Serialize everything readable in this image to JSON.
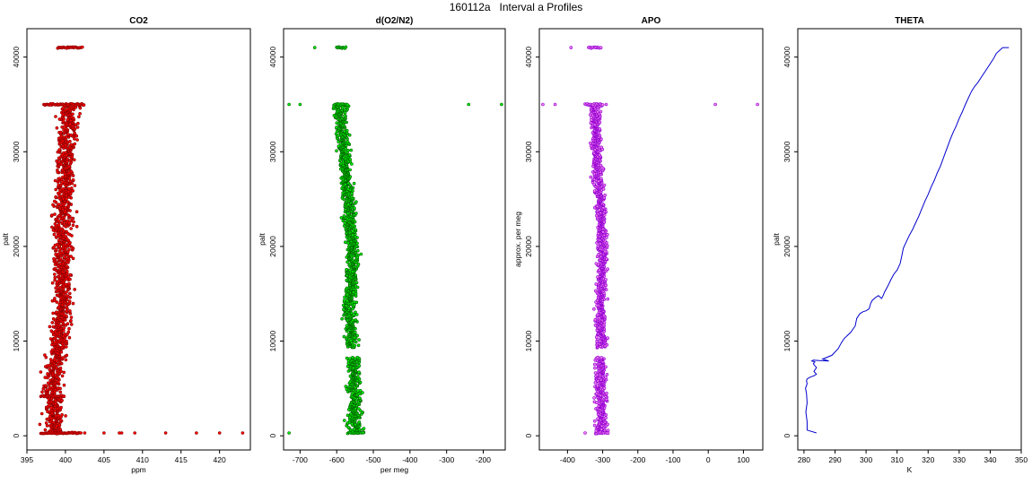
{
  "figure_title": "160112a   Interval a Profiles",
  "chart_data": [
    {
      "type": "scatter",
      "title": "CO2",
      "xlabel": "ppm",
      "ylabel": "palt",
      "xlim": [
        395,
        424
      ],
      "ylim": [
        -1500,
        43000
      ],
      "xticks": [
        395,
        400,
        405,
        410,
        415,
        420
      ],
      "xtick_labels": [
        "395",
        "400",
        "405",
        "410",
        "415",
        "420"
      ],
      "yticks": [
        0,
        10000,
        20000,
        30000,
        40000
      ],
      "ytick_labels": [
        "0",
        "10000",
        "20000",
        "30000",
        "40000"
      ],
      "point_color": "#ff0000",
      "edge_color": "#8b0000",
      "marker": "open-circle",
      "grid": false,
      "profile": {
        "altitude": [
          300,
          1000,
          2000,
          3000,
          4000,
          5000,
          6000,
          7000,
          8000,
          9000,
          10000,
          11000,
          12000,
          13000,
          14000,
          15000,
          16000,
          17000,
          18000,
          19000,
          20000,
          21000,
          22000,
          23000,
          24000,
          25000,
          26000,
          27000,
          28000,
          29000,
          30000,
          31000,
          32000,
          33000,
          34000,
          35000
        ],
        "center": [
          398.6,
          398.4,
          398.5,
          398.5,
          398.4,
          398.3,
          398.4,
          398.6,
          398.8,
          399.0,
          399.2,
          399.3,
          399.4,
          399.5,
          399.5,
          399.5,
          399.6,
          399.6,
          399.6,
          399.6,
          399.6,
          399.6,
          399.7,
          399.7,
          399.8,
          399.8,
          399.9,
          399.9,
          400.0,
          400.0,
          400.1,
          400.2,
          400.3,
          400.4,
          400.4,
          400.5
        ],
        "spread": [
          1.3,
          1.2,
          1.2,
          1.2,
          1.1,
          1.1,
          1.1,
          1.1,
          1.1,
          1.1,
          1.1,
          1.1,
          1.1,
          1.1,
          1.1,
          1.1,
          1.1,
          1.1,
          1.1,
          1.1,
          1.1,
          1.1,
          1.1,
          1.1,
          1.1,
          1.1,
          1.1,
          1.1,
          1.1,
          1.1,
          1.1,
          1.1,
          1.1,
          1.1,
          1.1,
          1.2
        ]
      },
      "clusters": [
        {
          "y": 41000,
          "x_from": 399.0,
          "x_to": 402.2
        },
        {
          "y": 35000,
          "x_from": 397.2,
          "x_to": 402.4
        },
        {
          "y": 4200,
          "x_from": 396.8,
          "x_to": 399.8
        },
        {
          "y": 300,
          "x_from": 396.8,
          "x_to": 402.0
        }
      ],
      "outliers": [
        {
          "x": 402.5,
          "y": 300
        },
        {
          "x": 405.0,
          "y": 300
        },
        {
          "x": 407.0,
          "y": 300
        },
        {
          "x": 407.3,
          "y": 300
        },
        {
          "x": 409.0,
          "y": 300
        },
        {
          "x": 413.0,
          "y": 300
        },
        {
          "x": 417.0,
          "y": 300
        },
        {
          "x": 420.0,
          "y": 300
        },
        {
          "x": 423.0,
          "y": 300
        }
      ]
    },
    {
      "type": "scatter",
      "title": "d(O2/N2)",
      "xlabel": "per meg",
      "ylabel": "palt",
      "xlim": [
        -745,
        -140
      ],
      "ylim": [
        -1500,
        43000
      ],
      "xticks": [
        -700,
        -600,
        -500,
        -400,
        -300,
        -200
      ],
      "xtick_labels": [
        "-700",
        "-600",
        "-500",
        "-400",
        "-300",
        "-200"
      ],
      "yticks": [
        0,
        10000,
        20000,
        30000,
        40000
      ],
      "ytick_labels": [
        "0",
        "10000",
        "20000",
        "30000",
        "40000"
      ],
      "point_color": "#00ee00",
      "edge_color": "#006400",
      "marker": "open-circle",
      "grid": false,
      "profile": {
        "altitude": [
          300,
          1000,
          2000,
          3000,
          4000,
          5000,
          6000,
          7000,
          8000,
          9000,
          10000,
          11000,
          12000,
          13000,
          14000,
          15000,
          16000,
          17000,
          18000,
          19000,
          20000,
          21000,
          22000,
          23000,
          24000,
          25000,
          26000,
          27000,
          28000,
          29000,
          30000,
          31000,
          32000,
          33000,
          34000,
          35000
        ],
        "center": [
          -545,
          -550,
          -548,
          -550,
          -548,
          -555,
          -552,
          -555,
          -556,
          -558,
          -560,
          -560,
          -562,
          -565,
          -565,
          -563,
          -560,
          -558,
          -558,
          -556,
          -556,
          -560,
          -562,
          -565,
          -565,
          -568,
          -570,
          -575,
          -575,
          -578,
          -580,
          -582,
          -585,
          -588,
          -590,
          -590
        ],
        "spread": [
          20,
          18,
          18,
          16,
          18,
          16,
          16,
          16,
          16,
          15,
          15,
          15,
          15,
          15,
          15,
          15,
          15,
          15,
          15,
          15,
          15,
          15,
          15,
          15,
          15,
          15,
          15,
          15,
          15,
          15,
          15,
          15,
          15,
          15,
          15,
          15
        ]
      },
      "clusters": [
        {
          "y": 41000,
          "x_from": -600,
          "x_to": -575
        },
        {
          "y": 35000,
          "x_from": -605,
          "x_to": -570
        },
        {
          "y": 300,
          "x_from": -570,
          "x_to": -528
        }
      ],
      "outliers": [
        {
          "x": -730,
          "y": 300
        },
        {
          "x": -730,
          "y": 35000
        },
        {
          "x": -700,
          "y": 35000
        },
        {
          "x": -660,
          "y": 41000
        },
        {
          "x": -240,
          "y": 35000
        },
        {
          "x": -150,
          "y": 35000
        }
      ]
    },
    {
      "type": "scatter",
      "title": "APO",
      "xlabel": "",
      "ylabel": "approx. per meg",
      "xlim": [
        -480,
        155
      ],
      "ylim": [
        -1500,
        43000
      ],
      "xticks": [
        -400,
        -300,
        -200,
        -100,
        0,
        100
      ],
      "xtick_labels": [
        "-400",
        "-300",
        "-200",
        "-100",
        "0",
        "100"
      ],
      "yticks": [
        0,
        10000,
        20000,
        30000,
        40000
      ],
      "ytick_labels": [
        "0",
        "10000",
        "20000",
        "30000",
        "40000"
      ],
      "point_color": "#ee82ee",
      "edge_color": "#9400d3",
      "marker": "open-circle",
      "grid": false,
      "profile": {
        "altitude": [
          300,
          1000,
          2000,
          3000,
          4000,
          5000,
          6000,
          7000,
          8000,
          9000,
          10000,
          11000,
          12000,
          13000,
          14000,
          15000,
          16000,
          17000,
          18000,
          19000,
          20000,
          21000,
          22000,
          23000,
          24000,
          25000,
          26000,
          27000,
          28000,
          29000,
          30000,
          31000,
          32000,
          33000,
          34000,
          35000
        ],
        "center": [
          -300,
          -305,
          -305,
          -305,
          -305,
          -308,
          -305,
          -305,
          -305,
          -305,
          -305,
          -305,
          -305,
          -305,
          -305,
          -305,
          -303,
          -302,
          -302,
          -300,
          -300,
          -302,
          -303,
          -305,
          -305,
          -307,
          -310,
          -312,
          -312,
          -315,
          -318,
          -318,
          -320,
          -322,
          -322,
          -322
        ],
        "spread": [
          16,
          15,
          15,
          14,
          15,
          14,
          14,
          14,
          14,
          13,
          13,
          13,
          13,
          13,
          13,
          13,
          13,
          13,
          13,
          13,
          13,
          13,
          13,
          13,
          13,
          13,
          13,
          13,
          13,
          13,
          13,
          13,
          13,
          13,
          13,
          13
        ]
      },
      "clusters": [
        {
          "y": 41000,
          "x_from": -340,
          "x_to": -305
        },
        {
          "y": 35000,
          "x_from": -350,
          "x_to": -300
        },
        {
          "y": 300,
          "x_from": -320,
          "x_to": -285
        }
      ],
      "outliers": [
        {
          "x": -470,
          "y": 35000
        },
        {
          "x": -435,
          "y": 35000
        },
        {
          "x": -390,
          "y": 41000
        },
        {
          "x": -350,
          "y": 300
        },
        {
          "x": -290,
          "y": 35000
        },
        {
          "x": 20,
          "y": 35000
        },
        {
          "x": 140,
          "y": 35000
        }
      ]
    },
    {
      "type": "line",
      "title": "THETA",
      "xlabel": "K",
      "ylabel": "palt",
      "xlim": [
        278,
        350
      ],
      "ylim": [
        -1500,
        43000
      ],
      "xticks": [
        280,
        290,
        300,
        310,
        320,
        330,
        340,
        350
      ],
      "xtick_labels": [
        "280",
        "290",
        "300",
        "310",
        "320",
        "330",
        "340",
        "350"
      ],
      "yticks": [
        0,
        10000,
        20000,
        30000,
        40000
      ],
      "ytick_labels": [
        "0",
        "10000",
        "20000",
        "30000",
        "40000"
      ],
      "line_color": "#0000cd",
      "grid": false,
      "x": [
        284,
        281,
        281,
        280.6,
        281,
        280.8,
        280.5,
        281,
        280.8,
        281,
        282,
        283,
        284,
        283.2,
        284,
        283,
        283.5,
        282.5,
        283,
        285,
        288,
        286,
        289,
        291,
        292,
        293,
        294,
        295,
        296.5,
        297,
        298,
        299,
        300,
        301,
        301.5,
        302,
        303,
        304,
        305,
        305.5,
        306,
        307,
        308,
        309,
        310,
        311,
        311.5,
        312,
        313,
        314,
        315,
        316,
        317,
        318,
        319,
        320,
        321,
        322,
        323,
        324,
        325,
        326,
        327,
        328,
        329,
        330,
        331,
        332,
        333,
        334,
        335,
        336,
        337,
        338,
        339,
        340,
        341,
        342,
        344,
        346
      ],
      "y": [
        300,
        600,
        1500,
        2500,
        3500,
        4500,
        5000,
        5500,
        5800,
        6000,
        6200,
        6300,
        6500,
        6800,
        7200,
        7600,
        7800,
        7900,
        8000,
        7950,
        7900,
        8100,
        8500,
        9200,
        9800,
        10300,
        10600,
        10900,
        11600,
        12400,
        12900,
        13100,
        13200,
        13400,
        14000,
        14300,
        14600,
        14800,
        14500,
        14800,
        15200,
        15800,
        16500,
        17100,
        17500,
        18200,
        19000,
        19800,
        20500,
        21200,
        21800,
        22500,
        23200,
        24000,
        24800,
        25500,
        26300,
        27000,
        27800,
        28500,
        29400,
        30300,
        31200,
        32000,
        32700,
        33500,
        34200,
        35000,
        35700,
        36400,
        36900,
        37300,
        37800,
        38300,
        38800,
        39300,
        39800,
        40400,
        41000,
        41000
      ]
    }
  ]
}
